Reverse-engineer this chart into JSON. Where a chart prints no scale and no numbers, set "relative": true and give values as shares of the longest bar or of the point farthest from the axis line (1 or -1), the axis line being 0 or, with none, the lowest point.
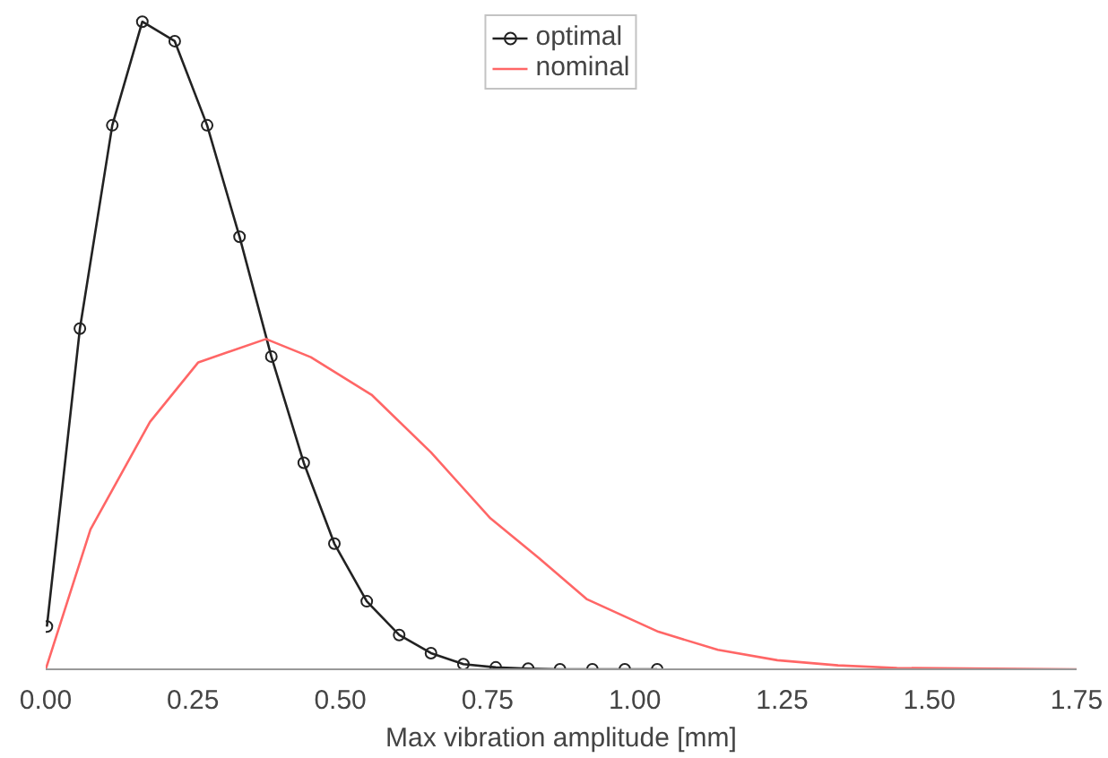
{
  "chart_data": {
    "type": "line",
    "xlabel": "Max vibration amplitude [mm]",
    "relative": true,
    "xlim": [
      0,
      1.75
    ],
    "xticks": [
      {
        "value": 0,
        "label": "0.00"
      },
      {
        "value": 0.25,
        "label": "0.25"
      },
      {
        "value": 0.5,
        "label": "0.50"
      },
      {
        "value": 0.75,
        "label": "0.75"
      },
      {
        "value": 1.0,
        "label": "1.00"
      },
      {
        "value": 1.25,
        "label": "1.25"
      },
      {
        "value": 1.5,
        "label": "1.50"
      },
      {
        "value": 1.75,
        "label": "1.75"
      }
    ],
    "grid": false,
    "legend": "top",
    "series": [
      {
        "name": "optimal",
        "color": "#222222",
        "marker": "circle",
        "x": [
          0.002,
          0.058,
          0.113,
          0.164,
          0.219,
          0.274,
          0.329,
          0.383,
          0.438,
          0.49,
          0.545,
          0.6,
          0.654,
          0.709,
          0.764,
          0.819,
          0.873,
          0.928,
          0.983,
          1.038
        ],
        "values": [
          0.066,
          0.526,
          0.84,
          1,
          0.97,
          0.84,
          0.668,
          0.483,
          0.319,
          0.194,
          0.105,
          0.053,
          0.025,
          0.008,
          0.003,
          0.001,
          0,
          0,
          0,
          0
        ]
      },
      {
        "name": "nominal",
        "color": "#ff6666",
        "marker": "none",
        "x": [
          0,
          0.076,
          0.177,
          0.259,
          0.374,
          0.45,
          0.553,
          0.654,
          0.755,
          0.837,
          0.919,
          1.04,
          1.141,
          1.242,
          1.345,
          1.445,
          1.75
        ],
        "values": [
          0,
          0.216,
          0.382,
          0.474,
          0.51,
          0.482,
          0.424,
          0.335,
          0.233,
          0.172,
          0.108,
          0.058,
          0.03,
          0.014,
          0.006,
          0.002,
          0
        ]
      }
    ]
  }
}
